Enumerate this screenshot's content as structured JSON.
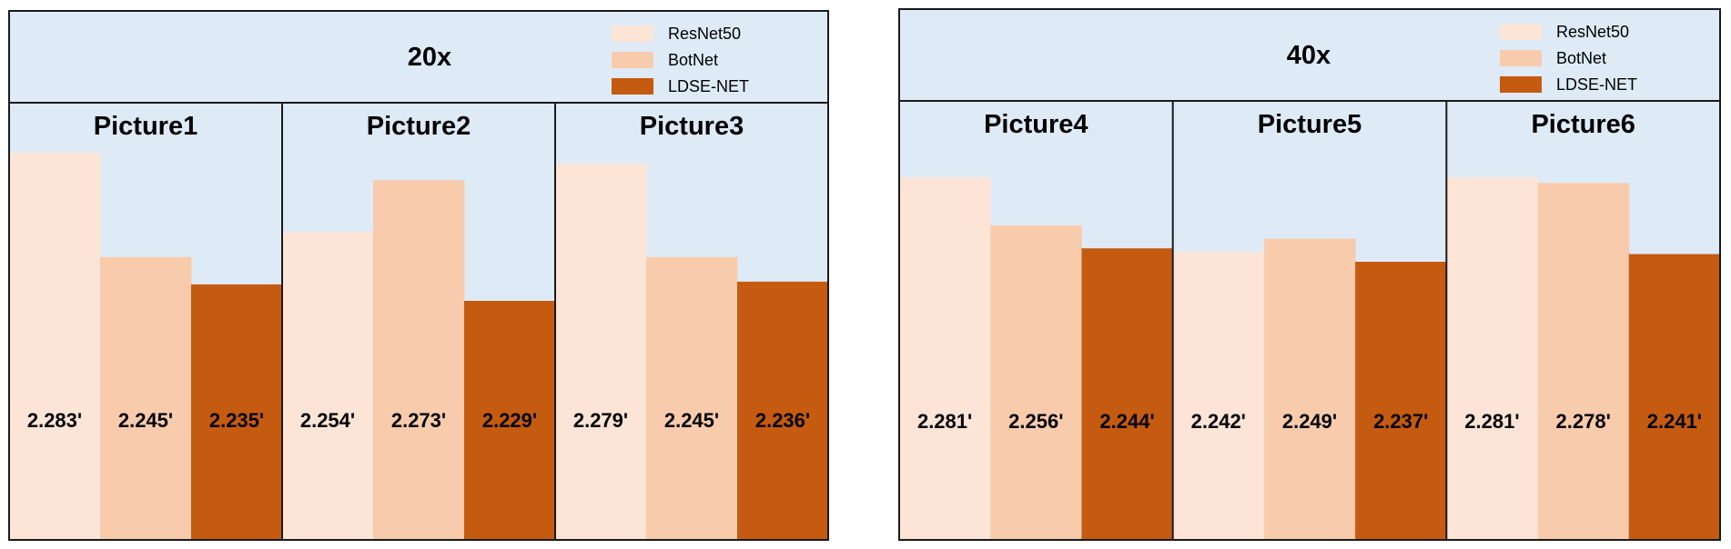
{
  "colors": {
    "background": "#deebf7",
    "border": "#1a1a1a",
    "ResNet50": "#fce4d6",
    "BotNet": "#f8cbad",
    "LDSE-NET": "#c55a11"
  },
  "chart_data": [
    {
      "type": "bar",
      "title": "20x",
      "legend": [
        "ResNet50",
        "BotNet",
        "LDSE-NET"
      ],
      "legend_position": "top-right",
      "categories": [
        "Picture1",
        "Picture2",
        "Picture3"
      ],
      "series": [
        {
          "name": "ResNet50",
          "values": [
            2.283,
            2.254,
            2.279
          ],
          "labels": [
            "2.283'",
            "2.254'",
            "2.279'"
          ]
        },
        {
          "name": "BotNet",
          "values": [
            2.245,
            2.273,
            2.245
          ],
          "labels": [
            "2.245'",
            "2.273'",
            "2.245'"
          ]
        },
        {
          "name": "LDSE-NET",
          "values": [
            2.235,
            2.229,
            2.236
          ],
          "labels": [
            "2.235'",
            "2.229'",
            "2.236'"
          ]
        }
      ],
      "ylim": [
        2.1,
        2.3
      ]
    },
    {
      "type": "bar",
      "title": "40x",
      "legend": [
        "ResNet50",
        "BotNet",
        "LDSE-NET"
      ],
      "legend_position": "top-right",
      "categories": [
        "Picture4",
        "Picture5",
        "Picture6"
      ],
      "series": [
        {
          "name": "ResNet50",
          "values": [
            2.281,
            2.242,
            2.281
          ],
          "labels": [
            "2.281'",
            "2.242'",
            "2.281'"
          ]
        },
        {
          "name": "BotNet",
          "values": [
            2.256,
            2.249,
            2.278
          ],
          "labels": [
            "2.256'",
            "2.249'",
            "2.278'"
          ]
        },
        {
          "name": "LDSE-NET",
          "values": [
            2.244,
            2.237,
            2.241
          ],
          "labels": [
            "2.244'",
            "2.237'",
            "2.241'"
          ]
        }
      ],
      "ylim": [
        2.14,
        2.3
      ]
    }
  ]
}
